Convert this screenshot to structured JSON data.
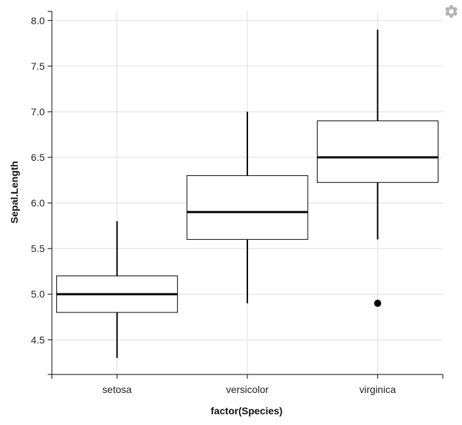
{
  "chart_data": {
    "type": "boxplot",
    "xlabel": "factor(Species)",
    "ylabel": "Sepal.Length",
    "ylim": [
      4.12,
      8.1
    ],
    "y_ticks": [
      "4.5",
      "5.0",
      "5.5",
      "6.0",
      "6.5",
      "7.0",
      "7.5",
      "8.0"
    ],
    "grid": true,
    "categories": [
      "setosa",
      "versicolor",
      "virginica"
    ],
    "boxes": [
      {
        "category": "setosa",
        "whisker_low": 4.3,
        "q1": 4.8,
        "median": 5.0,
        "q3": 5.2,
        "whisker_high": 5.8,
        "outliers": []
      },
      {
        "category": "versicolor",
        "whisker_low": 4.9,
        "q1": 5.6,
        "median": 5.9,
        "q3": 6.3,
        "whisker_high": 7.0,
        "outliers": []
      },
      {
        "category": "virginica",
        "whisker_low": 5.6,
        "q1": 6.225,
        "median": 6.5,
        "q3": 6.9,
        "whisker_high": 7.9,
        "outliers": [
          4.9
        ]
      }
    ],
    "colors": {
      "grid": "#dddddd",
      "box_stroke": "#000000",
      "box_fill": "#ffffff",
      "outlier": "#000000"
    }
  },
  "toolbar": {
    "settings_icon": "gear-icon",
    "icon_color": "#b3b3b3"
  }
}
